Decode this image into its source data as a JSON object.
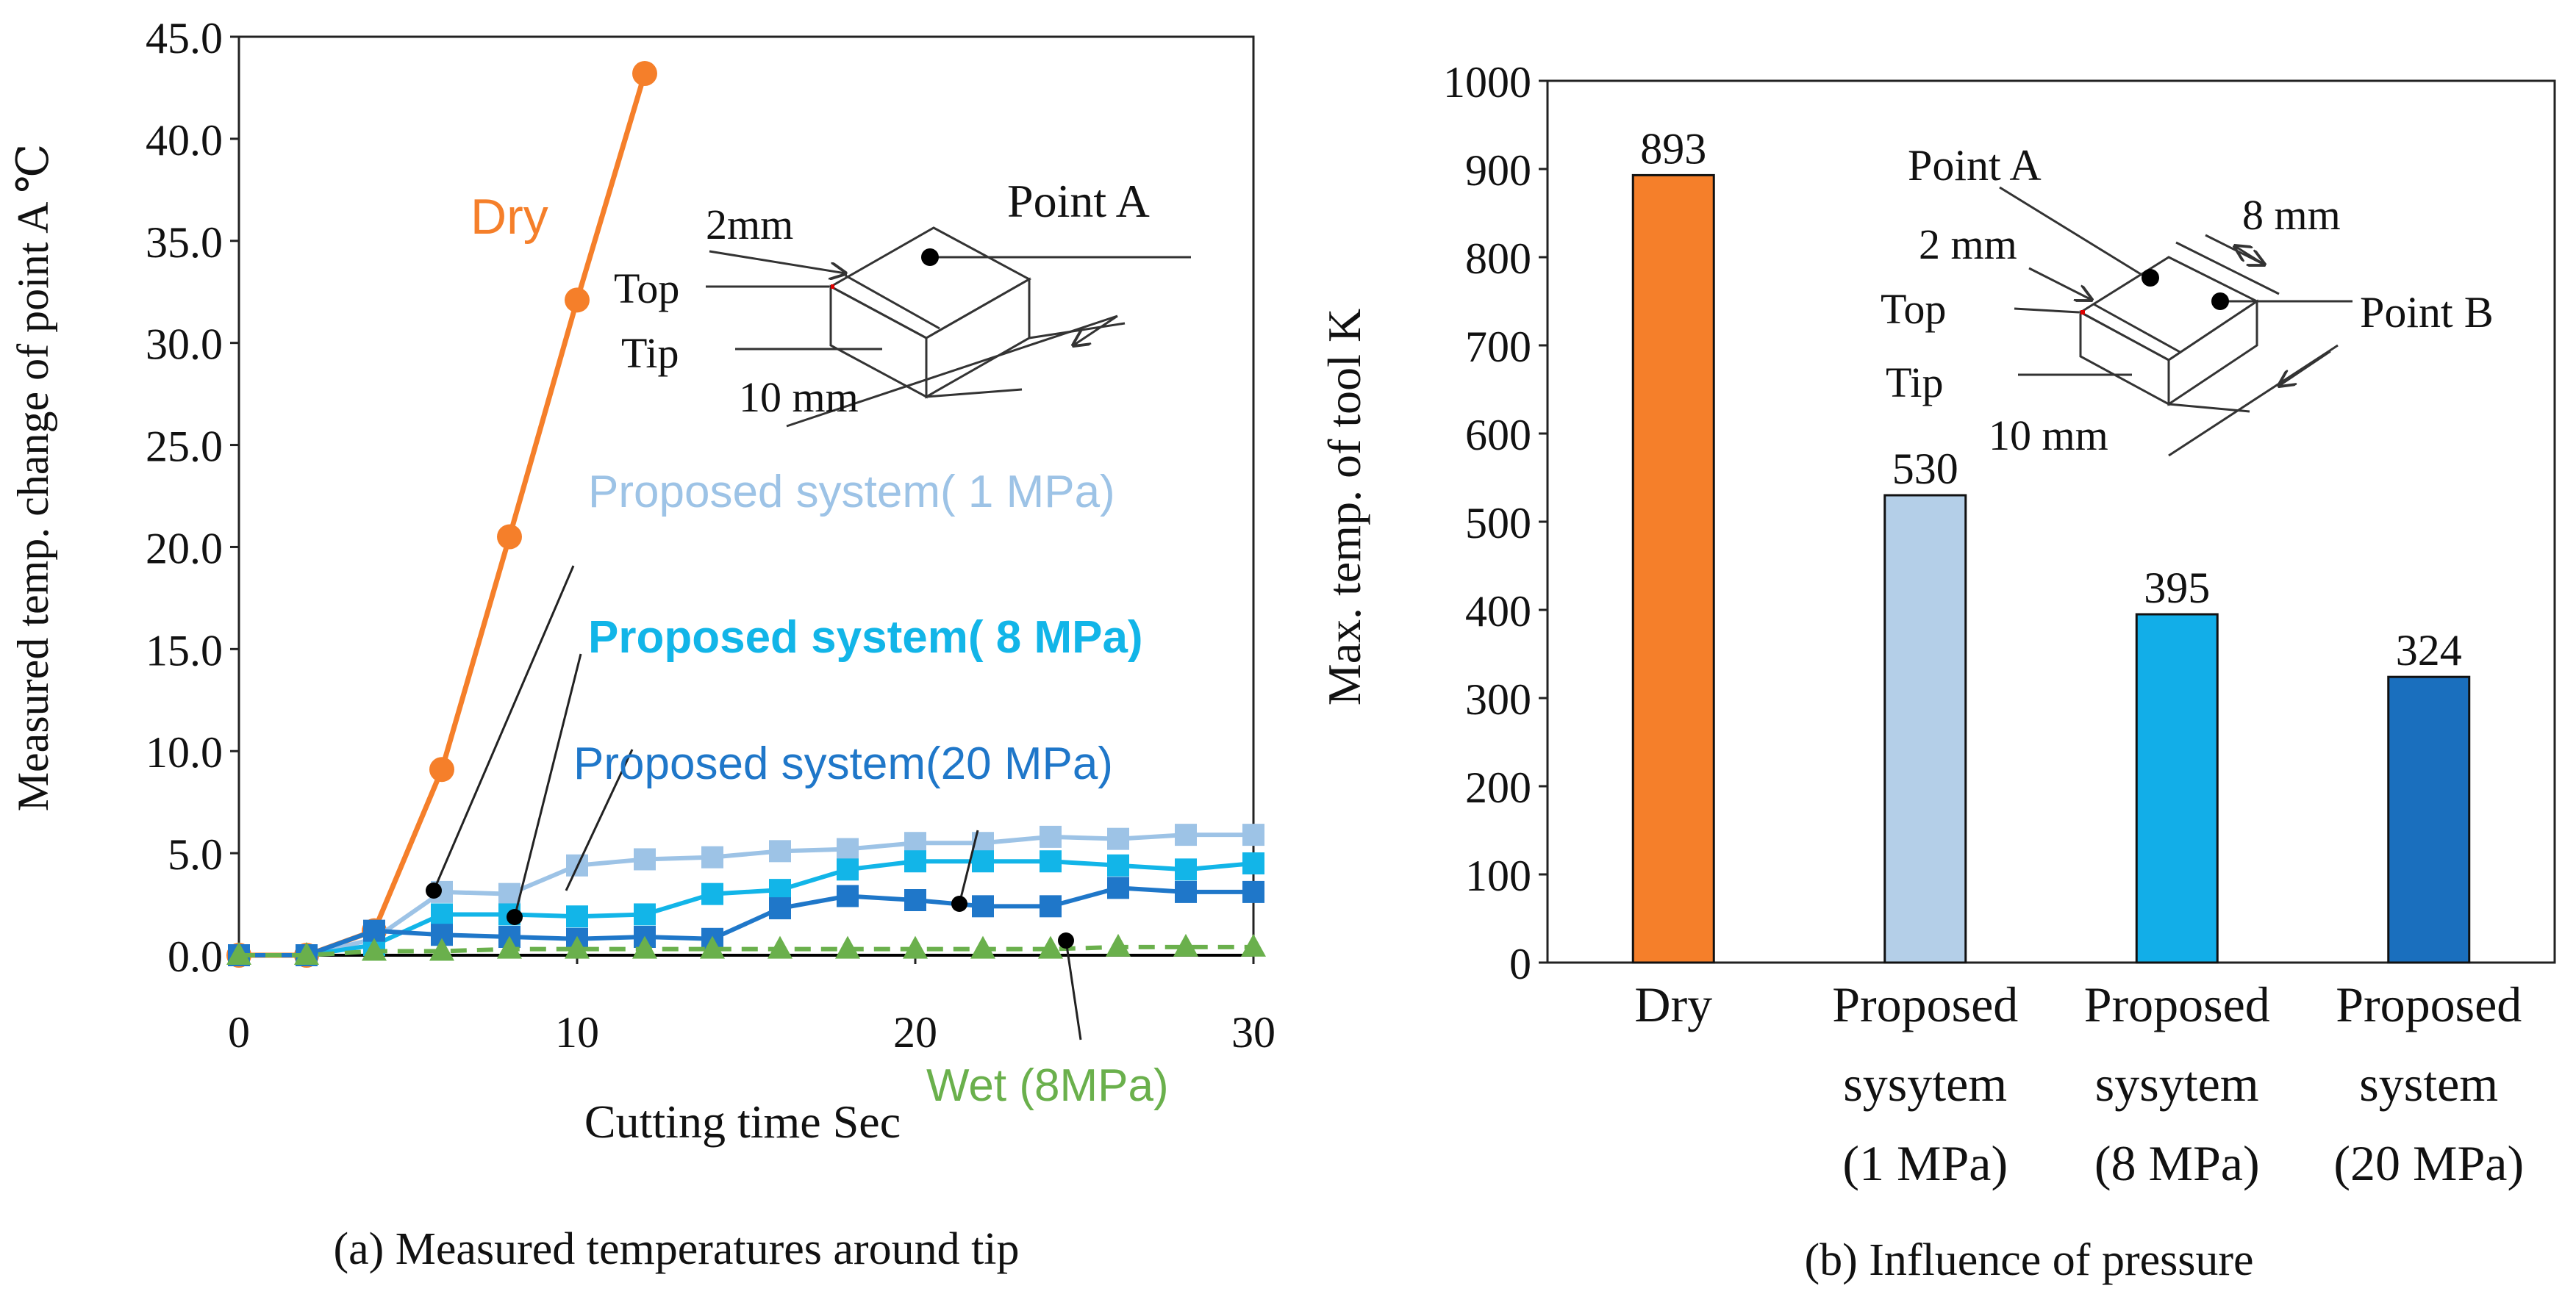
{
  "chart_data": [
    {
      "type": "line",
      "panel_caption": "(a)  Measured temperatures around tip",
      "xlabel": "Cutting time Sec",
      "ylabel": "Measured temp. change of point A ℃",
      "xlim": [
        0,
        30
      ],
      "ylim": [
        0,
        45
      ],
      "xticks": [
        "0",
        "10",
        "20",
        "30"
      ],
      "yticks": [
        "0.0",
        "5.0",
        "10.0",
        "15.0",
        "20.0",
        "25.0",
        "30.0",
        "35.0",
        "40.0",
        "45.0"
      ],
      "series": [
        {
          "name": "Dry",
          "label": "Dry",
          "color": "#f57f2a",
          "marker": "circle",
          "dashed": false,
          "x": [
            0,
            2,
            4,
            6,
            8,
            10,
            12
          ],
          "values": [
            0,
            0,
            1.2,
            9.1,
            20.5,
            32.1,
            43.2
          ]
        },
        {
          "name": "Proposed system( 1 MPa)",
          "label": "Proposed system( 1 MPa)",
          "color": "#9dc3e6",
          "marker": "square",
          "dashed": false,
          "x": [
            0,
            2,
            4,
            6,
            8,
            10,
            12,
            14,
            16,
            18,
            20,
            22,
            24,
            26,
            28,
            30
          ],
          "values": [
            0,
            0,
            0.8,
            3.1,
            3.0,
            4.4,
            4.7,
            4.8,
            5.1,
            5.2,
            5.5,
            5.5,
            5.8,
            5.7,
            5.9,
            5.9
          ]
        },
        {
          "name": "Proposed system( 8 MPa)",
          "label": "Proposed system( 8 MPa)",
          "color": "#12b5e8",
          "marker": "square",
          "dashed": false,
          "x": [
            0,
            2,
            4,
            6,
            8,
            10,
            12,
            14,
            16,
            18,
            20,
            22,
            24,
            26,
            28,
            30
          ],
          "values": [
            0,
            0,
            0.5,
            2.0,
            2.0,
            1.9,
            2.0,
            3.0,
            3.2,
            4.2,
            4.6,
            4.6,
            4.6,
            4.4,
            4.2,
            4.5
          ]
        },
        {
          "name": "Proposed system(20 MPa)",
          "label": "Proposed system(20 MPa)",
          "color": "#1f77c9",
          "marker": "square",
          "dashed": false,
          "x": [
            0,
            2,
            4,
            6,
            8,
            10,
            12,
            14,
            16,
            18,
            20,
            22,
            24,
            26,
            28,
            30
          ],
          "values": [
            0,
            0,
            1.2,
            1.0,
            0.9,
            0.8,
            0.9,
            0.8,
            2.3,
            2.9,
            2.7,
            2.4,
            2.4,
            3.3,
            3.1,
            3.1
          ]
        },
        {
          "name": "Wet (8MPa)",
          "label": "Wet (8MPa)",
          "color": "#6ab04c",
          "marker": "triangle",
          "dashed": true,
          "x": [
            0,
            2,
            4,
            6,
            8,
            10,
            12,
            14,
            16,
            18,
            20,
            22,
            24,
            26,
            28,
            30
          ],
          "values": [
            0,
            0,
            0.2,
            0.2,
            0.3,
            0.3,
            0.3,
            0.3,
            0.3,
            0.3,
            0.3,
            0.3,
            0.3,
            0.4,
            0.4,
            0.4
          ]
        }
      ],
      "inset": {
        "dim1": "2mm",
        "dim2": "10 mm",
        "label_top": "Top",
        "label_tip": "Tip",
        "label_point": "Point A"
      }
    },
    {
      "type": "bar",
      "panel_caption": "(b) Influence of pressure",
      "ylabel": "Max. temp. of tool K",
      "ylim": [
        0,
        1000
      ],
      "yticks": [
        "0",
        "100",
        "200",
        "300",
        "400",
        "500",
        "600",
        "700",
        "800",
        "900",
        "1000"
      ],
      "categories": [
        [
          "Dry"
        ],
        [
          "Proposed",
          "sysytem",
          "(1 MPa)"
        ],
        [
          "Proposed",
          "sysytem",
          "(8 MPa)"
        ],
        [
          "Proposed",
          "system",
          "(20 MPa)"
        ]
      ],
      "values": [
        893,
        530,
        395,
        324
      ],
      "value_labels": [
        "893",
        "530",
        "395",
        "324"
      ],
      "colors": [
        "#f57f2a",
        "#b4cfe8",
        "#12aee8",
        "#1a6fbe"
      ],
      "inset": {
        "dim1": "2 mm",
        "dim2": "10 mm",
        "dim3": "8 mm",
        "label_top": "Top",
        "label_tip": "Tip",
        "label_point_a": "Point A",
        "label_point_b": "Point B"
      }
    }
  ]
}
